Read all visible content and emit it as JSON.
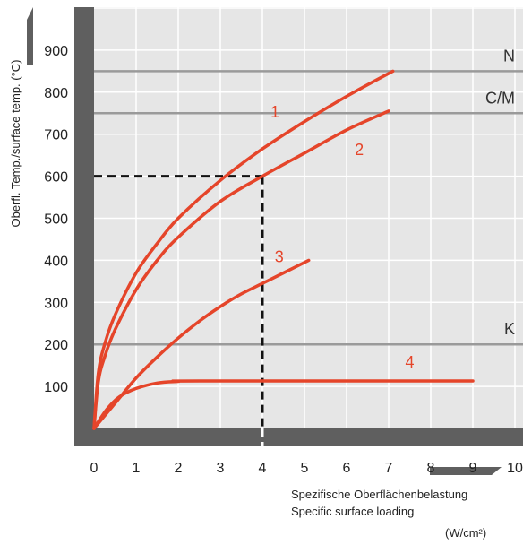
{
  "chart_data": {
    "type": "line",
    "ylabel": "Oberfl. Temp./surface temp. (°C)",
    "xlabel_lines": [
      "Spezifische Oberflächenbelastung",
      "Specific surface loading"
    ],
    "xunit": "(W/cm²)",
    "xlim": [
      0,
      10
    ],
    "ylim": [
      0,
      1000
    ],
    "xticks": [
      0,
      1,
      2,
      3,
      4,
      5,
      6,
      7,
      8,
      9,
      10
    ],
    "yticks": [
      100,
      200,
      300,
      400,
      500,
      600,
      700,
      800,
      900
    ],
    "grid": true,
    "colors": {
      "plot_background": "#e6e6e6",
      "frame": "#5f5f5f",
      "grid": "#ffffff",
      "reference_line": "#9a9a9a",
      "curve": "#e5452a",
      "guide": "#111111"
    },
    "reference_lines": [
      {
        "label": "N",
        "y": 850
      },
      {
        "label": "C/M",
        "y": 750
      },
      {
        "label": "K",
        "y": 200
      }
    ],
    "series": [
      {
        "name": "1",
        "x": [
          0,
          0.1,
          0.25,
          0.5,
          1,
          1.5,
          2,
          3,
          4,
          5,
          6,
          7.1
        ],
        "y": [
          0,
          130,
          200,
          270,
          370,
          440,
          500,
          590,
          665,
          730,
          790,
          850
        ]
      },
      {
        "name": "2",
        "x": [
          0,
          0.1,
          0.25,
          0.5,
          1,
          1.5,
          2,
          3,
          4,
          5,
          6,
          7
        ],
        "y": [
          0,
          110,
          170,
          235,
          330,
          400,
          455,
          540,
          600,
          655,
          710,
          755
        ]
      },
      {
        "name": "3",
        "x": [
          0,
          0.5,
          1,
          1.5,
          2,
          2.5,
          3,
          3.5,
          4,
          4.5,
          5.1
        ],
        "y": [
          0,
          60,
          120,
          170,
          215,
          255,
          290,
          320,
          345,
          370,
          400
        ]
      },
      {
        "name": "4",
        "x": [
          0,
          0.3,
          0.6,
          1,
          1.5,
          2,
          2.5,
          9
        ],
        "y": [
          0,
          45,
          75,
          95,
          108,
          112,
          113,
          113
        ]
      }
    ],
    "guide": {
      "x": 4,
      "y": 600
    }
  }
}
